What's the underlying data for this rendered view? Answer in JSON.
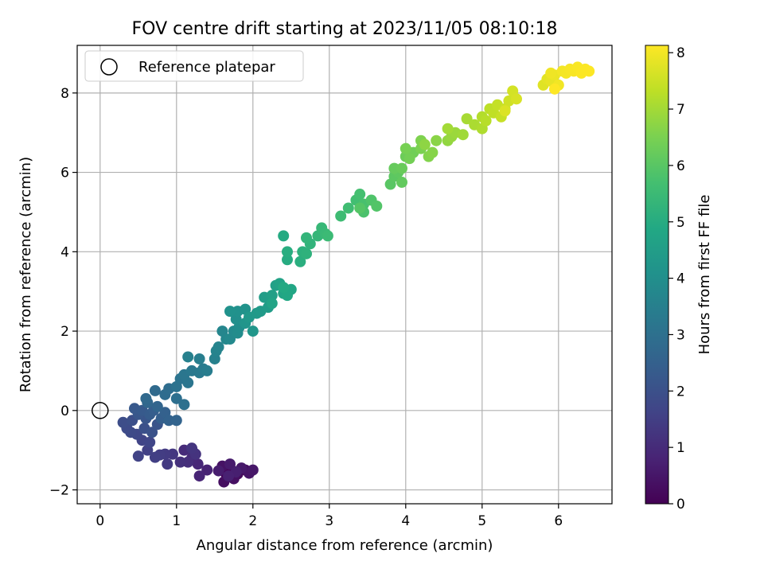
{
  "chart_data": {
    "type": "scatter",
    "title": "FOV centre drift starting at 2023/11/05 08:10:18",
    "xlabel": "Angular distance from reference (arcmin)",
    "ylabel": "Rotation from reference (arcmin)",
    "xlim": [
      -0.3,
      6.7
    ],
    "ylim": [
      -2.35,
      9.2
    ],
    "xticks": [
      0,
      1,
      2,
      3,
      4,
      5,
      6
    ],
    "yticks": [
      -2,
      0,
      2,
      4,
      6,
      8
    ],
    "grid": true,
    "legend": {
      "location": "upper-left",
      "entries": [
        "Reference platepar"
      ]
    },
    "reference_point": {
      "name": "Reference platepar",
      "x": 0,
      "y": 0
    },
    "colorbar": {
      "label": "Hours from first FF file",
      "min": 0,
      "max": 8.13,
      "ticks": [
        0,
        1,
        2,
        3,
        4,
        5,
        6,
        7,
        8
      ],
      "colormap": "viridis"
    },
    "points": [
      {
        "x": 1.65,
        "y": -1.6,
        "t": 0.1
      },
      {
        "x": 1.72,
        "y": -1.5,
        "t": 0.15
      },
      {
        "x": 1.8,
        "y": -1.6,
        "t": 0.2
      },
      {
        "x": 1.9,
        "y": -1.5,
        "t": 0.25
      },
      {
        "x": 1.62,
        "y": -1.8,
        "t": 0.3
      },
      {
        "x": 1.75,
        "y": -1.72,
        "t": 0.35
      },
      {
        "x": 1.6,
        "y": -1.4,
        "t": 0.4
      },
      {
        "x": 1.95,
        "y": -1.58,
        "t": 0.45
      },
      {
        "x": 2.0,
        "y": -1.5,
        "t": 0.5
      },
      {
        "x": 1.85,
        "y": -1.45,
        "t": 0.55
      },
      {
        "x": 1.7,
        "y": -1.35,
        "t": 0.6
      },
      {
        "x": 1.55,
        "y": -1.52,
        "t": 0.65
      },
      {
        "x": 1.78,
        "y": -1.55,
        "t": 0.7
      },
      {
        "x": 1.68,
        "y": -1.65,
        "t": 0.75
      },
      {
        "x": 1.4,
        "y": -1.5,
        "t": 0.8
      },
      {
        "x": 1.3,
        "y": -1.65,
        "t": 0.85
      },
      {
        "x": 1.28,
        "y": -1.35,
        "t": 0.9
      },
      {
        "x": 1.2,
        "y": -1.2,
        "t": 0.95
      },
      {
        "x": 1.1,
        "y": -1.0,
        "t": 1.0
      },
      {
        "x": 1.22,
        "y": -1.05,
        "t": 1.05
      },
      {
        "x": 1.15,
        "y": -1.3,
        "t": 1.1
      },
      {
        "x": 1.05,
        "y": -1.3,
        "t": 1.15
      },
      {
        "x": 1.25,
        "y": -1.1,
        "t": 1.2
      },
      {
        "x": 1.2,
        "y": -0.95,
        "t": 1.25
      },
      {
        "x": 0.95,
        "y": -1.1,
        "t": 1.3
      },
      {
        "x": 0.88,
        "y": -1.35,
        "t": 1.35
      },
      {
        "x": 0.85,
        "y": -1.1,
        "t": 1.4
      },
      {
        "x": 0.78,
        "y": -1.12,
        "t": 1.45
      },
      {
        "x": 0.72,
        "y": -1.18,
        "t": 1.5
      },
      {
        "x": 0.62,
        "y": -1.0,
        "t": 1.55
      },
      {
        "x": 0.5,
        "y": -1.15,
        "t": 1.6
      },
      {
        "x": 0.55,
        "y": -0.75,
        "t": 1.65
      },
      {
        "x": 0.65,
        "y": -0.8,
        "t": 1.7
      },
      {
        "x": 0.48,
        "y": -0.6,
        "t": 1.75
      },
      {
        "x": 0.4,
        "y": -0.55,
        "t": 1.8
      },
      {
        "x": 0.35,
        "y": -0.45,
        "t": 1.85
      },
      {
        "x": 0.3,
        "y": -0.3,
        "t": 1.9
      },
      {
        "x": 0.42,
        "y": -0.25,
        "t": 1.95
      },
      {
        "x": 0.58,
        "y": -0.45,
        "t": 2.0
      },
      {
        "x": 0.68,
        "y": -0.55,
        "t": 2.05
      },
      {
        "x": 0.75,
        "y": -0.35,
        "t": 2.1
      },
      {
        "x": 0.6,
        "y": -0.2,
        "t": 2.15
      },
      {
        "x": 0.5,
        "y": -0.1,
        "t": 2.2
      },
      {
        "x": 0.45,
        "y": 0.05,
        "t": 2.25
      },
      {
        "x": 0.55,
        "y": 0.0,
        "t": 2.3
      },
      {
        "x": 0.65,
        "y": -0.1,
        "t": 2.35
      },
      {
        "x": 0.7,
        "y": 0.0,
        "t": 2.4
      },
      {
        "x": 0.8,
        "y": -0.2,
        "t": 2.45
      },
      {
        "x": 0.85,
        "y": -0.05,
        "t": 2.5
      },
      {
        "x": 0.9,
        "y": -0.25,
        "t": 2.55
      },
      {
        "x": 1.0,
        "y": -0.25,
        "t": 2.6
      },
      {
        "x": 0.75,
        "y": 0.1,
        "t": 2.65
      },
      {
        "x": 0.62,
        "y": 0.2,
        "t": 2.7
      },
      {
        "x": 0.6,
        "y": 0.3,
        "t": 2.75
      },
      {
        "x": 0.72,
        "y": 0.5,
        "t": 2.8
      },
      {
        "x": 0.85,
        "y": 0.4,
        "t": 2.85
      },
      {
        "x": 0.9,
        "y": 0.55,
        "t": 2.9
      },
      {
        "x": 1.0,
        "y": 0.3,
        "t": 2.95
      },
      {
        "x": 1.1,
        "y": 0.15,
        "t": 3.0
      },
      {
        "x": 1.0,
        "y": 0.6,
        "t": 3.05
      },
      {
        "x": 1.05,
        "y": 0.8,
        "t": 3.1
      },
      {
        "x": 1.15,
        "y": 0.7,
        "t": 3.15
      },
      {
        "x": 1.1,
        "y": 0.9,
        "t": 3.2
      },
      {
        "x": 1.2,
        "y": 1.0,
        "t": 3.25
      },
      {
        "x": 1.3,
        "y": 0.95,
        "t": 3.3
      },
      {
        "x": 1.35,
        "y": 1.05,
        "t": 3.35
      },
      {
        "x": 1.4,
        "y": 1.0,
        "t": 3.4
      },
      {
        "x": 1.3,
        "y": 1.3,
        "t": 3.45
      },
      {
        "x": 1.15,
        "y": 1.35,
        "t": 3.5
      },
      {
        "x": 1.5,
        "y": 1.3,
        "t": 3.55
      },
      {
        "x": 1.52,
        "y": 1.5,
        "t": 3.6
      },
      {
        "x": 1.55,
        "y": 1.6,
        "t": 3.65
      },
      {
        "x": 1.6,
        "y": 2.0,
        "t": 3.7
      },
      {
        "x": 1.65,
        "y": 1.8,
        "t": 3.75
      },
      {
        "x": 1.7,
        "y": 1.8,
        "t": 3.8
      },
      {
        "x": 1.75,
        "y": 2.0,
        "t": 3.85
      },
      {
        "x": 1.8,
        "y": 1.95,
        "t": 3.9
      },
      {
        "x": 1.82,
        "y": 2.1,
        "t": 3.95
      },
      {
        "x": 1.78,
        "y": 2.3,
        "t": 4.0
      },
      {
        "x": 1.8,
        "y": 2.5,
        "t": 4.05
      },
      {
        "x": 1.7,
        "y": 2.5,
        "t": 4.1
      },
      {
        "x": 1.9,
        "y": 2.55,
        "t": 4.15
      },
      {
        "x": 1.9,
        "y": 2.2,
        "t": 4.2
      },
      {
        "x": 2.0,
        "y": 2.0,
        "t": 4.25
      },
      {
        "x": 1.95,
        "y": 2.35,
        "t": 4.3
      },
      {
        "x": 2.05,
        "y": 2.45,
        "t": 4.35
      },
      {
        "x": 2.1,
        "y": 2.5,
        "t": 4.4
      },
      {
        "x": 2.2,
        "y": 2.6,
        "t": 4.45
      },
      {
        "x": 2.15,
        "y": 2.85,
        "t": 4.5
      },
      {
        "x": 2.25,
        "y": 2.9,
        "t": 4.55
      },
      {
        "x": 2.3,
        "y": 3.15,
        "t": 4.6
      },
      {
        "x": 2.35,
        "y": 3.2,
        "t": 4.65
      },
      {
        "x": 2.25,
        "y": 2.7,
        "t": 4.7
      },
      {
        "x": 2.4,
        "y": 2.95,
        "t": 4.75
      },
      {
        "x": 2.5,
        "y": 3.05,
        "t": 4.8
      },
      {
        "x": 2.45,
        "y": 2.9,
        "t": 4.85
      },
      {
        "x": 2.4,
        "y": 3.1,
        "t": 4.9
      },
      {
        "x": 2.4,
        "y": 4.4,
        "t": 4.95
      },
      {
        "x": 2.45,
        "y": 3.8,
        "t": 5.0
      },
      {
        "x": 2.45,
        "y": 4.0,
        "t": 5.05
      },
      {
        "x": 2.62,
        "y": 3.75,
        "t": 5.1
      },
      {
        "x": 2.65,
        "y": 4.0,
        "t": 5.15
      },
      {
        "x": 2.7,
        "y": 3.95,
        "t": 5.2
      },
      {
        "x": 2.75,
        "y": 4.2,
        "t": 5.25
      },
      {
        "x": 2.7,
        "y": 4.35,
        "t": 5.3
      },
      {
        "x": 2.85,
        "y": 4.4,
        "t": 5.35
      },
      {
        "x": 2.9,
        "y": 4.6,
        "t": 5.4
      },
      {
        "x": 2.95,
        "y": 4.45,
        "t": 5.45
      },
      {
        "x": 2.98,
        "y": 4.4,
        "t": 5.5
      },
      {
        "x": 3.15,
        "y": 4.9,
        "t": 5.55
      },
      {
        "x": 3.25,
        "y": 5.1,
        "t": 5.6
      },
      {
        "x": 3.35,
        "y": 5.3,
        "t": 5.65
      },
      {
        "x": 3.4,
        "y": 5.45,
        "t": 5.7
      },
      {
        "x": 3.45,
        "y": 5.2,
        "t": 5.75
      },
      {
        "x": 3.45,
        "y": 5.0,
        "t": 5.8
      },
      {
        "x": 3.55,
        "y": 5.3,
        "t": 5.85
      },
      {
        "x": 3.62,
        "y": 5.15,
        "t": 5.9
      },
      {
        "x": 3.4,
        "y": 5.1,
        "t": 5.95
      },
      {
        "x": 3.8,
        "y": 5.7,
        "t": 6.0
      },
      {
        "x": 3.85,
        "y": 5.9,
        "t": 6.05
      },
      {
        "x": 3.9,
        "y": 6.0,
        "t": 6.1
      },
      {
        "x": 3.95,
        "y": 5.75,
        "t": 6.15
      },
      {
        "x": 3.85,
        "y": 6.1,
        "t": 6.2
      },
      {
        "x": 3.95,
        "y": 6.1,
        "t": 6.25
      },
      {
        "x": 4.0,
        "y": 6.4,
        "t": 6.3
      },
      {
        "x": 4.1,
        "y": 6.5,
        "t": 6.35
      },
      {
        "x": 4.05,
        "y": 6.35,
        "t": 6.4
      },
      {
        "x": 4.0,
        "y": 6.6,
        "t": 6.45
      },
      {
        "x": 4.2,
        "y": 6.6,
        "t": 6.5
      },
      {
        "x": 4.2,
        "y": 6.8,
        "t": 6.55
      },
      {
        "x": 4.3,
        "y": 6.4,
        "t": 6.6
      },
      {
        "x": 4.35,
        "y": 6.5,
        "t": 6.65
      },
      {
        "x": 4.4,
        "y": 6.8,
        "t": 6.7
      },
      {
        "x": 4.25,
        "y": 6.7,
        "t": 6.75
      },
      {
        "x": 4.55,
        "y": 6.8,
        "t": 6.8
      },
      {
        "x": 4.6,
        "y": 6.9,
        "t": 6.85
      },
      {
        "x": 4.65,
        "y": 7.0,
        "t": 6.9
      },
      {
        "x": 4.75,
        "y": 6.95,
        "t": 6.95
      },
      {
        "x": 4.55,
        "y": 7.1,
        "t": 7.0
      },
      {
        "x": 4.8,
        "y": 7.35,
        "t": 7.05
      },
      {
        "x": 4.9,
        "y": 7.2,
        "t": 7.1
      },
      {
        "x": 5.0,
        "y": 7.1,
        "t": 7.15
      },
      {
        "x": 5.0,
        "y": 7.4,
        "t": 7.2
      },
      {
        "x": 5.05,
        "y": 7.3,
        "t": 7.25
      },
      {
        "x": 5.1,
        "y": 7.6,
        "t": 7.3
      },
      {
        "x": 5.15,
        "y": 7.5,
        "t": 7.35
      },
      {
        "x": 5.2,
        "y": 7.7,
        "t": 7.4
      },
      {
        "x": 5.25,
        "y": 7.4,
        "t": 7.45
      },
      {
        "x": 5.3,
        "y": 7.6,
        "t": 7.5
      },
      {
        "x": 5.35,
        "y": 7.8,
        "t": 7.55
      },
      {
        "x": 5.4,
        "y": 8.05,
        "t": 7.6
      },
      {
        "x": 5.45,
        "y": 7.85,
        "t": 7.65
      },
      {
        "x": 5.3,
        "y": 7.55,
        "t": 7.7
      },
      {
        "x": 5.8,
        "y": 8.2,
        "t": 7.75
      },
      {
        "x": 5.85,
        "y": 8.35,
        "t": 7.8
      },
      {
        "x": 5.9,
        "y": 8.3,
        "t": 7.85
      },
      {
        "x": 5.95,
        "y": 8.45,
        "t": 7.9
      },
      {
        "x": 5.9,
        "y": 8.5,
        "t": 7.95
      },
      {
        "x": 6.0,
        "y": 8.2,
        "t": 7.98
      },
      {
        "x": 6.05,
        "y": 8.55,
        "t": 8.0
      },
      {
        "x": 6.1,
        "y": 8.5,
        "t": 8.03
      },
      {
        "x": 6.15,
        "y": 8.6,
        "t": 8.05
      },
      {
        "x": 6.2,
        "y": 8.55,
        "t": 8.07
      },
      {
        "x": 6.25,
        "y": 8.65,
        "t": 8.08
      },
      {
        "x": 6.3,
        "y": 8.5,
        "t": 8.1
      },
      {
        "x": 6.35,
        "y": 8.6,
        "t": 8.11
      },
      {
        "x": 6.4,
        "y": 8.55,
        "t": 8.12
      },
      {
        "x": 5.95,
        "y": 8.1,
        "t": 8.13
      }
    ]
  }
}
